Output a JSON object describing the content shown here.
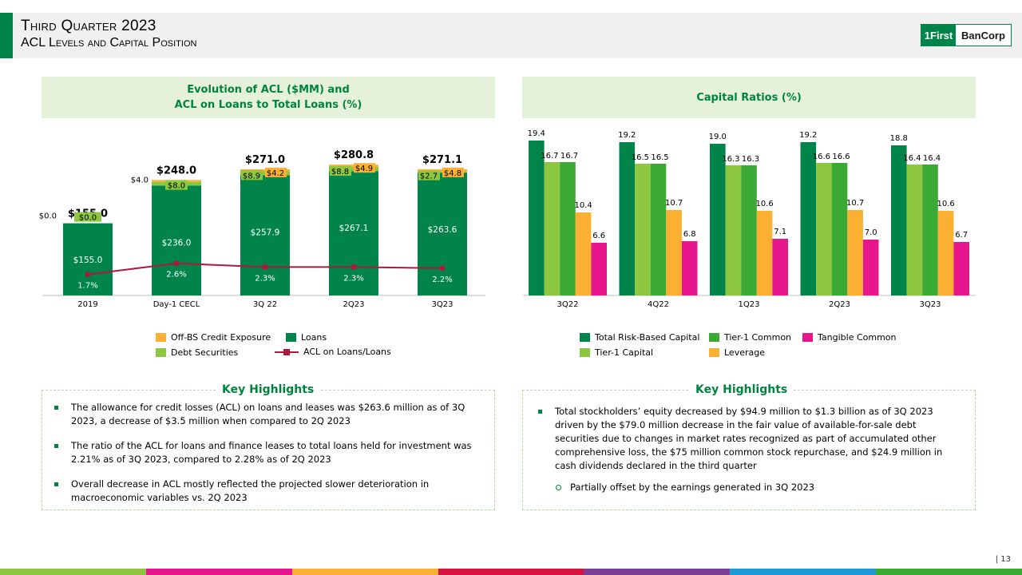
{
  "header": {
    "title": "Third Quarter 2023",
    "subtitle": "ACL Levels and Capital Position"
  },
  "logo": {
    "left_text": "1First",
    "right_text": "BanCorp"
  },
  "left_panel": {
    "title_line1": "Evolution of ACL ($MM) and",
    "title_line2": "ACL on Loans to Total Loans (%)"
  },
  "right_panel": {
    "title": "Capital Ratios (%)"
  },
  "colors": {
    "loans": "#00844a",
    "debt_securities": "#8dc63f",
    "off_bs": "#fbb034",
    "acl_line": "#b1163c",
    "total_rbc": "#00844a",
    "tier1_capital": "#8dc63f",
    "tier1_common": "#3aaa35",
    "leverage": "#fbb034",
    "tangible_common": "#e6168c"
  },
  "chart_data": [
    {
      "type": "bar",
      "title": "Evolution of ACL ($MM) and ACL on Loans to Total Loans (%)",
      "categories": [
        "2019",
        "Day-1 CECL",
        "3Q 22",
        "2Q23",
        "3Q23"
      ],
      "series": [
        {
          "name": "Loans",
          "values": [
            155.0,
            236.0,
            257.9,
            267.1,
            263.6
          ],
          "labels": [
            "$155.0",
            "$236.0",
            "$257.9",
            "$267.1",
            "$263.6"
          ]
        },
        {
          "name": "Debt Securities",
          "values": [
            0.0,
            8.0,
            8.9,
            8.8,
            2.7
          ],
          "labels": [
            "$0.0",
            "$8.0",
            "$8.9",
            "$8.8",
            "$2.7"
          ]
        },
        {
          "name": "Off-BS Credit Exposure",
          "values": [
            0.0,
            4.0,
            4.2,
            4.9,
            4.8
          ],
          "labels": [
            "$0.0",
            "$4.0",
            "$4.2",
            "$4.9",
            "$4.8"
          ]
        },
        {
          "name": "ACL on Loans/Loans",
          "type": "line",
          "values": [
            1.7,
            2.6,
            2.3,
            2.3,
            2.2
          ],
          "labels": [
            "1.7%",
            "2.6%",
            "2.3%",
            "2.3%",
            "2.2%"
          ]
        }
      ],
      "totals": [
        "$155.0",
        "$248.0",
        "$271.0",
        "$280.8",
        "$271.1"
      ],
      "ylim": [
        0,
        300
      ],
      "line_ylim": [
        0,
        10
      ],
      "legend": [
        "Off-BS Credit Exposure",
        "Loans",
        "Debt Securities",
        "ACL on Loans/Loans"
      ]
    },
    {
      "type": "bar",
      "title": "Capital Ratios (%)",
      "categories": [
        "3Q22",
        "4Q22",
        "1Q23",
        "2Q23",
        "3Q23"
      ],
      "series": [
        {
          "name": "Total Risk-Based Capital",
          "values": [
            19.4,
            19.2,
            19.0,
            19.2,
            18.8
          ],
          "labels": [
            "19.4",
            "19.2",
            "19.0",
            "19.2",
            "18.8"
          ]
        },
        {
          "name": "Tier-1 Capital",
          "values": [
            16.7,
            16.5,
            16.3,
            16.6,
            16.4
          ],
          "labels": [
            "16.7",
            "16.5",
            "16.3",
            "16.6",
            "16.4"
          ]
        },
        {
          "name": "Tier-1 Common",
          "values": [
            16.7,
            16.5,
            16.3,
            16.6,
            16.4
          ],
          "labels": [
            "16.7",
            "16.5",
            "16.3",
            "16.6",
            "16.4"
          ]
        },
        {
          "name": "Leverage",
          "values": [
            10.4,
            10.7,
            10.6,
            10.7,
            10.6
          ],
          "labels": [
            "10.4",
            "10.7",
            "10.6",
            "10.7",
            "10.6"
          ]
        },
        {
          "name": "Tangible Common",
          "values": [
            6.6,
            6.8,
            7.1,
            7.0,
            6.7
          ],
          "labels": [
            "6.6",
            "6.8",
            "7.1",
            "7.0",
            "6.7"
          ]
        }
      ],
      "ylim": [
        0,
        20
      ],
      "legend": [
        "Total Risk-Based Capital",
        "Tier-1 Common",
        "Tangible Common",
        "Tier-1 Capital",
        "Leverage"
      ]
    }
  ],
  "left_highlights": {
    "title": "Key Highlights",
    "items": [
      "The allowance  for credit losses (ACL) on loans and leases was $263.6 million  as of 3Q 2023, a decrease of $3.5 million  when compared  to 2Q 2023",
      "The ratio of the ACL for loans and finance leases to total loans held for investment was 2.21% as of 3Q 2023, compared  to 2.28% as of 2Q 2023",
      "Overall decrease  in ACL mostly  reflected  the projected  slower deterioration  in macroeconomic  variables vs. 2Q 2023"
    ]
  },
  "right_highlights": {
    "title": "Key Highlights",
    "items": [
      "Total stockholders’ equity decreased by $94.9 million to $1.3 billion  as of 3Q 2023 driven by the $79.0 million  decrease  in the fair value of available-for-sale  debt securities due  to changes in market rates recognized  as part of accumulated  other comprehensive loss, the $75 million  common stock repurchase,  and $24.9 million in cash dividends declared  in the third quarter"
    ],
    "sub_items": [
      "Partially  offset by the earnings generated  in 3Q 2023"
    ]
  },
  "page_number": "| 13",
  "footer_colors": [
    "#8dc63f",
    "#e6168c",
    "#fbb034",
    "#d7143f",
    "#7b3f98",
    "#1b9ad6",
    "#3aaa35"
  ]
}
